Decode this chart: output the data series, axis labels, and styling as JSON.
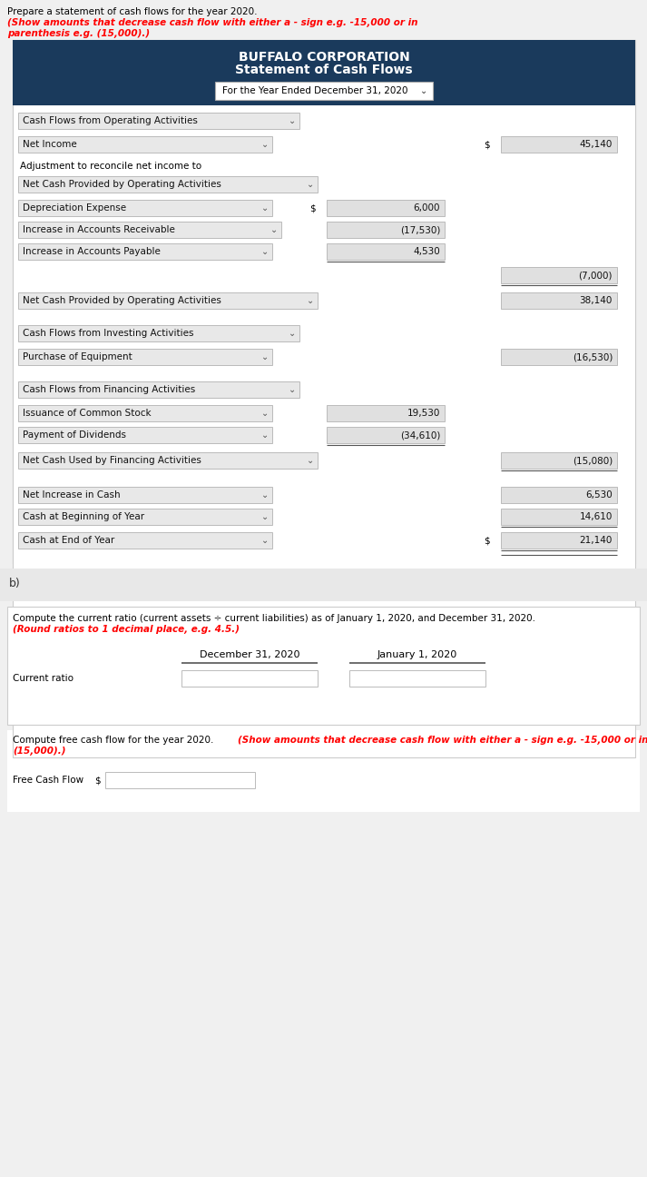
{
  "title_line1": "BUFFALO CORPORATION",
  "title_line2": "Statement of Cash Flows",
  "subtitle": "For the Year Ended December 31, 2020",
  "bg_color": "#f0f0f0",
  "header_bg": "#1a3a5c",
  "page_bg": "#ffffff",
  "section_bg": "#f0f0f0",
  "input_bg": "#e0e0e0",
  "border_color": "#bbbbbb",
  "dropdown_char": "⌄",
  "col_dec31": "December 31, 2020",
  "col_jan1": "January 1, 2020",
  "ratio_label": "Current ratio",
  "free_cash_label": "Free Cash Flow"
}
